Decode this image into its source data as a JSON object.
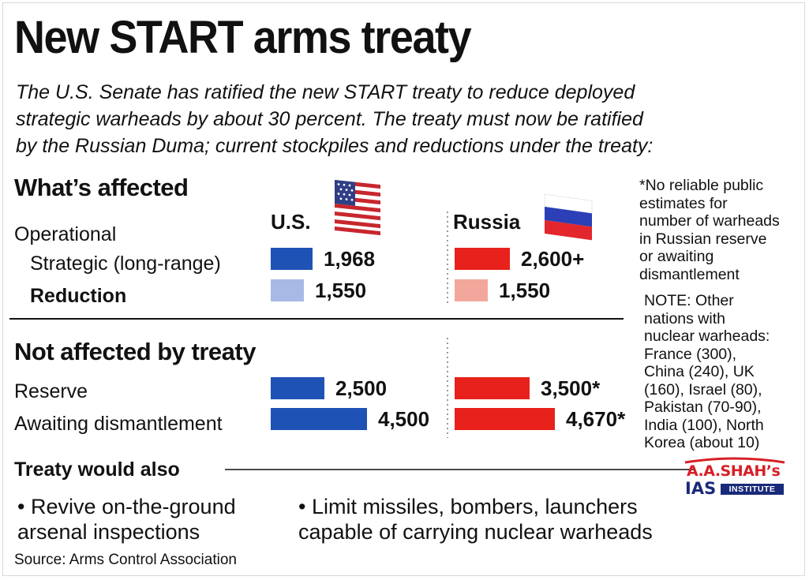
{
  "title": "New START arms treaty",
  "intro": [
    "The U.S. Senate has ratified the new START treaty to reduce deployed",
    "strategic warheads by about 30 percent. The treaty must now be ratified",
    "by the Russian Duma; current stockpiles and reductions under the treaty:"
  ],
  "section_affected": "What’s affected",
  "section_not_affected": "Not affected by treaty",
  "col_us": "U.S.",
  "col_russia": "Russia",
  "labels": {
    "operational": "Operational",
    "strategic": "Strategic (long-range)",
    "reduction": "Reduction",
    "reserve": "Reserve",
    "awaiting": "Awaiting dismantlement"
  },
  "side_note_1": [
    "*No reliable public",
    "estimates for",
    "number of warheads",
    "in Russian reserve",
    "or awaiting",
    "dismantlement"
  ],
  "side_note_2": [
    "NOTE: Other",
    "nations with",
    "nuclear warheads:",
    "France (300),",
    "China (240), UK",
    "(160), Israel (80),",
    "Pakistan (70-90),",
    "India (100), North",
    "Korea (about 10)"
  ],
  "treaty_also": "Treaty would also",
  "bullets": [
    [
      "• Revive on-the-ground",
      "arsenal inspections"
    ],
    [
      "• Limit missiles, bombers, launchers",
      "capable of carrying nuclear warheads"
    ]
  ],
  "source": "Source: Arms Control Association",
  "logo": {
    "line1": "A.A.SHAH’s",
    "line2": "IAS",
    "line3": "INSTITUTE"
  },
  "colors": {
    "us_dark": "#1f52b5",
    "us_light": "#a8b9e6",
    "ru_dark": "#e8211c",
    "ru_light": "#f3a79c"
  },
  "chart_data": {
    "type": "bar",
    "categories": [
      "Strategic (long-range)",
      "Reduction",
      "Reserve",
      "Awaiting dismantlement"
    ],
    "series": [
      {
        "name": "U.S.",
        "values": [
          1968,
          1550,
          2500,
          4500
        ],
        "labels": [
          "1,968",
          "1,550",
          "2,500",
          "4,500"
        ]
      },
      {
        "name": "Russia",
        "values": [
          2600,
          1550,
          3500,
          4670
        ],
        "labels": [
          "2,600+",
          "1,550",
          "3,500*",
          "4,670*"
        ]
      }
    ]
  }
}
